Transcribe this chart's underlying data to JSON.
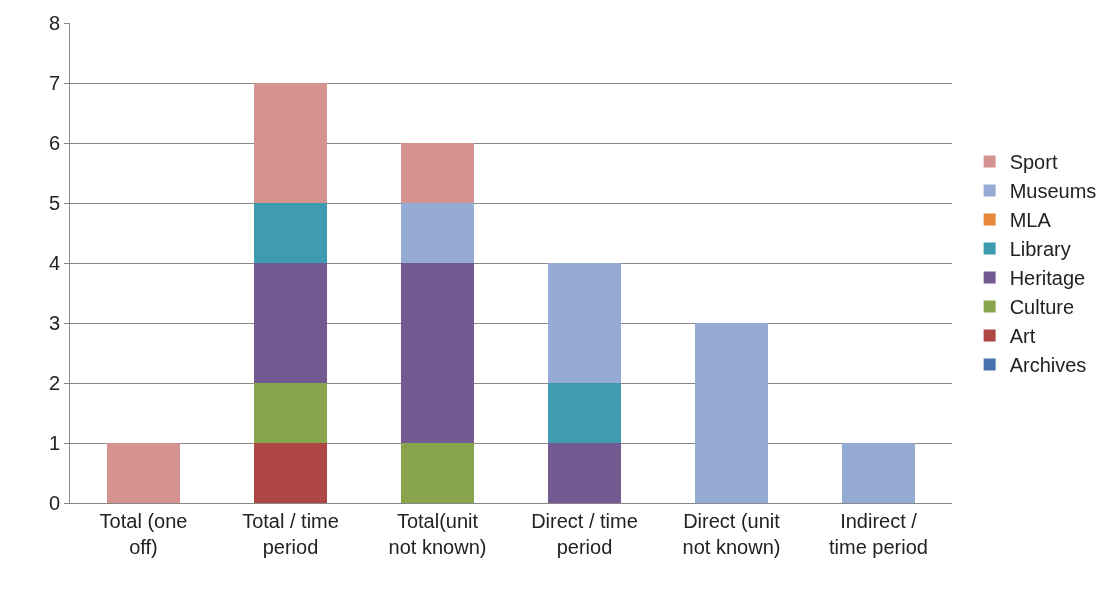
{
  "chart_data": {
    "type": "bar",
    "stacked": true,
    "categories": [
      "Total (one off)",
      "Total / time period",
      "Total(unit not known)",
      "Direct / time period",
      "Direct (unit not known)",
      "Indirect / time period"
    ],
    "series": [
      {
        "name": "Archives",
        "color": "#4673ab",
        "values": [
          0,
          0,
          0,
          0,
          0,
          0
        ]
      },
      {
        "name": "Art",
        "color": "#ad4644",
        "values": [
          0,
          1,
          0,
          0,
          0,
          0
        ]
      },
      {
        "name": "Culture",
        "color": "#88a54c",
        "values": [
          0,
          1,
          1,
          0,
          0,
          0
        ]
      },
      {
        "name": "Heritage",
        "color": "#735a91",
        "values": [
          0,
          2,
          3,
          1,
          0,
          0
        ]
      },
      {
        "name": "Library",
        "color": "#3f9bb0",
        "values": [
          0,
          1,
          0,
          1,
          0,
          0
        ]
      },
      {
        "name": "MLA",
        "color": "#e8883a",
        "values": [
          0,
          0,
          0,
          0,
          0,
          0
        ]
      },
      {
        "name": "Museums",
        "color": "#95abd3",
        "values": [
          0,
          0,
          1,
          2,
          3,
          1
        ]
      },
      {
        "name": "Sport",
        "color": "#d49390",
        "values": [
          1,
          2,
          1,
          0,
          0,
          0
        ]
      }
    ],
    "ylim": [
      0,
      8
    ],
    "yticks": [
      0,
      1,
      2,
      3,
      4,
      5,
      6,
      7,
      8
    ],
    "grid": "y",
    "legend": "right"
  }
}
